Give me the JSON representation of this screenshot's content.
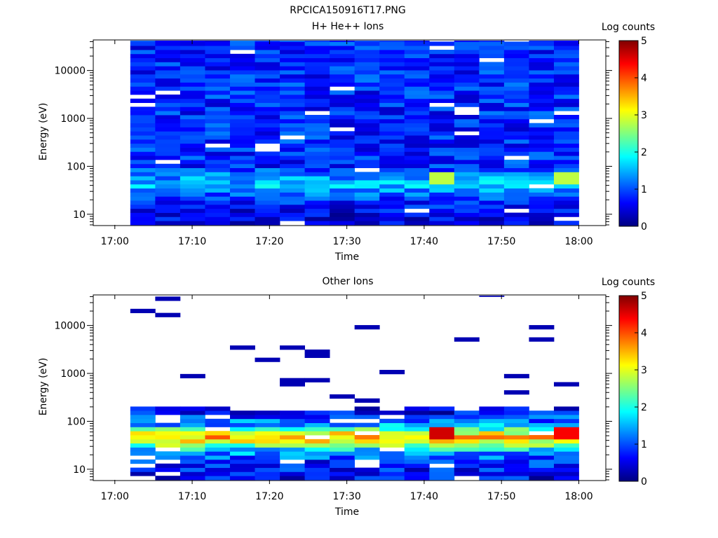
{
  "figure_title": "RPCICA150916T17.PNG",
  "colorbar_colors": [
    "#000080",
    "#0000ff",
    "#00ffff",
    "#ffff00",
    "#ff0000",
    "#800000"
  ],
  "chart_data": [
    {
      "type": "heatmap",
      "title": "H+ He++ Ions",
      "xlabel": "Time",
      "ylabel": "Energy (eV)",
      "colorbar_label": "Log counts",
      "colorbar_range": [
        0,
        5
      ],
      "colorbar_ticks": [
        "0",
        "1",
        "2",
        "3",
        "4",
        "5"
      ],
      "x_ticks": [
        "17:00",
        "17:10",
        "17:20",
        "17:30",
        "17:40",
        "17:50",
        "18:00"
      ],
      "y_ticks": [
        "10",
        "100",
        "1000",
        "10000"
      ],
      "y_scale": "log",
      "ylim": [
        6,
        42000
      ],
      "data_time_range": [
        "17:02",
        "18:00"
      ],
      "columns": 18,
      "grid": false,
      "low_energy_profile": [
        {
          "energy": 10,
          "log_counts": 0.5
        },
        {
          "energy": 15,
          "log_counts": 0.7
        },
        {
          "energy": 20,
          "log_counts": 0.9
        },
        {
          "energy": 30,
          "log_counts": 1.2
        },
        {
          "energy": 40,
          "log_counts": 1.6
        },
        {
          "energy": 55,
          "log_counts": 1.4
        },
        {
          "energy": 100,
          "log_counts": 0.8
        },
        {
          "energy": 1000,
          "log_counts": 0.8
        },
        {
          "energy": 10000,
          "log_counts": 0.8
        }
      ],
      "peak_columns": [
        {
          "time": "17:42",
          "energy": 55,
          "log_counts": 2.8
        },
        {
          "time": "17:58",
          "energy": 55,
          "log_counts": 2.8
        }
      ]
    },
    {
      "type": "heatmap",
      "title": "Other Ions",
      "xlabel": "Time",
      "ylabel": "Energy (eV)",
      "colorbar_label": "Log counts",
      "colorbar_range": [
        0,
        5
      ],
      "colorbar_ticks": [
        "0",
        "1",
        "2",
        "3",
        "4",
        "5"
      ],
      "x_ticks": [
        "17:00",
        "17:10",
        "17:20",
        "17:30",
        "17:40",
        "17:50",
        "18:00"
      ],
      "y_ticks": [
        "10",
        "100",
        "1000",
        "10000"
      ],
      "y_scale": "log",
      "ylim": [
        6,
        42000
      ],
      "data_time_range": [
        "17:02",
        "18:00"
      ],
      "columns": 18,
      "grid": false,
      "low_energy_profile": [
        {
          "energy": 8,
          "log_counts": 0.6
        },
        {
          "energy": 15,
          "log_counts": 0.8
        },
        {
          "energy": 25,
          "log_counts": 1.6
        },
        {
          "energy": 35,
          "log_counts": 2.8
        },
        {
          "energy": 50,
          "log_counts": 3.6
        },
        {
          "energy": 80,
          "log_counts": 1.5
        },
        {
          "energy": 150,
          "log_counts": 0.6
        },
        {
          "energy": 200,
          "log_counts": 0.3
        }
      ],
      "peak_columns": [
        {
          "time": "17:42",
          "energy": 55,
          "log_counts": 4.6
        },
        {
          "time": "17:58",
          "energy": 55,
          "log_counts": 4.4
        }
      ],
      "sparse_high_energy": "isolated low-count bins between 200 eV and 40000 eV"
    }
  ]
}
